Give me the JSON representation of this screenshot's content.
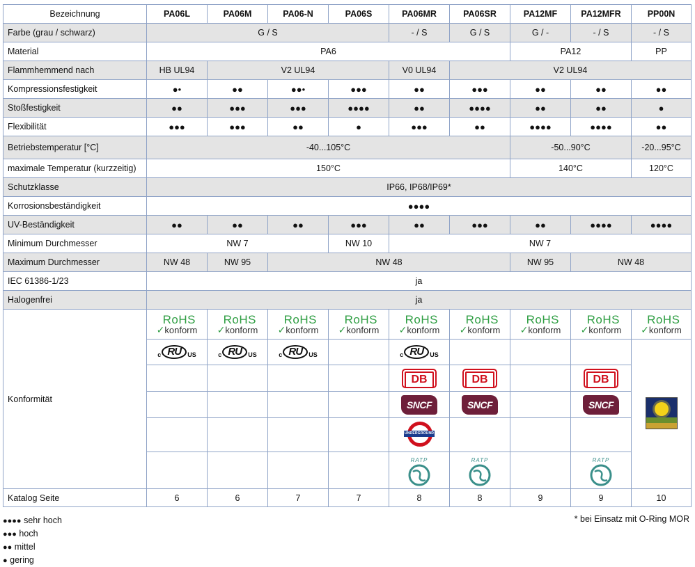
{
  "header": {
    "label": "Bezeichnung",
    "columns": [
      "PA06L",
      "PA06M",
      "PA06-N",
      "PA06S",
      "PA06MR",
      "PA06SR",
      "PA12MF",
      "PA12MFR",
      "PP00N"
    ]
  },
  "rows": {
    "farbe": {
      "label": "Farbe (grau / schwarz)",
      "v1": "G / S",
      "v2": "- / S",
      "v3": "G / S",
      "v4": "G / -",
      "v5": "- / S",
      "v6": "- / S"
    },
    "material": {
      "label": "Material",
      "v1": "PA6",
      "v2": "PA12",
      "v3": "PP"
    },
    "flamm": {
      "label": "Flammhemmend nach",
      "v1": "HB UL94",
      "v2": "V2 UL94",
      "v3": "V0 UL94",
      "v4": "V2 UL94"
    },
    "kompression": {
      "label": "Kompressionsfestigkeit",
      "values": [
        "●•",
        "●●",
        "●●•",
        "●●●",
        "●●",
        "●●●",
        "●●",
        "●●",
        "●●"
      ]
    },
    "stoss": {
      "label": "Stoßfestigkeit",
      "values": [
        "●●",
        "●●●",
        "●●●",
        "●●●●",
        "●●",
        "●●●●",
        "●●",
        "●●",
        "●"
      ]
    },
    "flex": {
      "label": "Flexibilität",
      "values": [
        "●●●",
        "●●●",
        "●●",
        "●",
        "●●●",
        "●●",
        "●●●●",
        "●●●●",
        "●●"
      ]
    },
    "betrieb": {
      "label": "Betriebstemperatur [°C]",
      "v1": "-40...105°C",
      "v2": "-50...90°C",
      "v3": "-20...95°C"
    },
    "maxtemp": {
      "label": "maximale Temperatur (kurzzeitig)",
      "v1": "150°C",
      "v2": "140°C",
      "v3": "120°C"
    },
    "schutz": {
      "label": "Schutzklasse",
      "v1": "IP66, IP68/IP69*"
    },
    "korrosion": {
      "label": "Korrosionsbeständigkeit",
      "v1": "●●●●"
    },
    "uv": {
      "label": "UV-Beständigkeit",
      "values": [
        "●●",
        "●●",
        "●●",
        "●●●",
        "●●",
        "●●●",
        "●●",
        "●●●●",
        "●●●●"
      ]
    },
    "mindm": {
      "label": "Minimum Durchmesser",
      "v1": "NW 7",
      "v2": "NW 10",
      "v3": "NW 7"
    },
    "maxdm": {
      "label": "Maximum Durchmesser",
      "v1": "NW 48",
      "v2": "NW 95",
      "v3": "NW 48",
      "v4": "NW 95",
      "v5": "NW 48"
    },
    "iec": {
      "label": "IEC 61386-1/23",
      "v1": "ja"
    },
    "halogen": {
      "label": "Halogenfrei",
      "v1": "ja"
    },
    "konform": {
      "label": "Konformität"
    },
    "katalog": {
      "label": "Katalog Seite",
      "values": [
        "6",
        "6",
        "7",
        "7",
        "8",
        "8",
        "9",
        "9",
        "10"
      ]
    }
  },
  "logos": {
    "rohs_top": "RoHS",
    "rohs_bottom": "konform",
    "rohs_check": "✓",
    "ul_left": "c",
    "ul_mid": "RU",
    "ul_right": "US",
    "db": "DB",
    "sncf": "SNCF",
    "underground": "UNDERGROUND",
    "ratp": "RATP",
    "icons": [
      "check-icon",
      "ul-certification-icon",
      "db-logo",
      "sncf-logo",
      "underground-logo",
      "ratp-logo",
      "uv-sun-icon"
    ],
    "colors": {
      "rohs_green": "#2f9e43",
      "db_red": "#d0101d",
      "sncf_purple": "#6e1f3a",
      "underground_blue": "#1b3c8e",
      "ratp_teal": "#3a8f8a",
      "grid_blue": "#8fa3c7",
      "row_shade": "#e4e4e4"
    }
  },
  "legend": {
    "items": [
      {
        "dots": "●●●●",
        "text": "sehr hoch"
      },
      {
        "dots": "●●●",
        "text": "hoch"
      },
      {
        "dots": "●●",
        "text": "mittel"
      },
      {
        "dots": "●",
        "text": "gering"
      }
    ]
  },
  "footnote": "* bei Einsatz mit O-Ring MOR"
}
